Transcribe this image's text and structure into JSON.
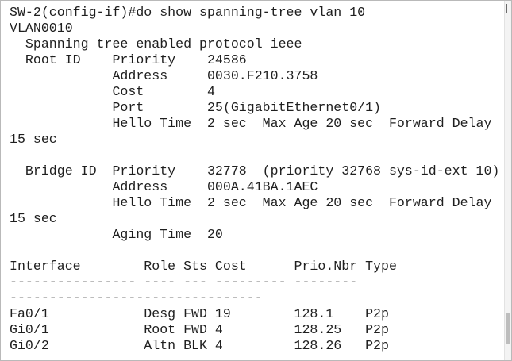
{
  "terminal": {
    "lines": [
      "SW-2(config-if)#do show spanning-tree vlan 10",
      "VLAN0010",
      "  Spanning tree enabled protocol ieee",
      "  Root ID    Priority    24586",
      "             Address     0030.F210.3758",
      "             Cost        4",
      "             Port        25(GigabitEthernet0/1)",
      "             Hello Time  2 sec  Max Age 20 sec  Forward Delay",
      "15 sec",
      "",
      "  Bridge ID  Priority    32778  (priority 32768 sys-id-ext 10)",
      "             Address     000A.41BA.1AEC",
      "             Hello Time  2 sec  Max Age 20 sec  Forward Delay",
      "15 sec",
      "             Aging Time  20",
      "",
      "Interface        Role Sts Cost      Prio.Nbr Type",
      "---------------- ---- --- --------- --------",
      "--------------------------------",
      "Fa0/1            Desg FWD 19        128.1    P2p",
      "Gi0/1            Root FWD 4         128.25   P2p",
      "Gi0/2            Altn BLK 4         128.26   P2p"
    ]
  }
}
